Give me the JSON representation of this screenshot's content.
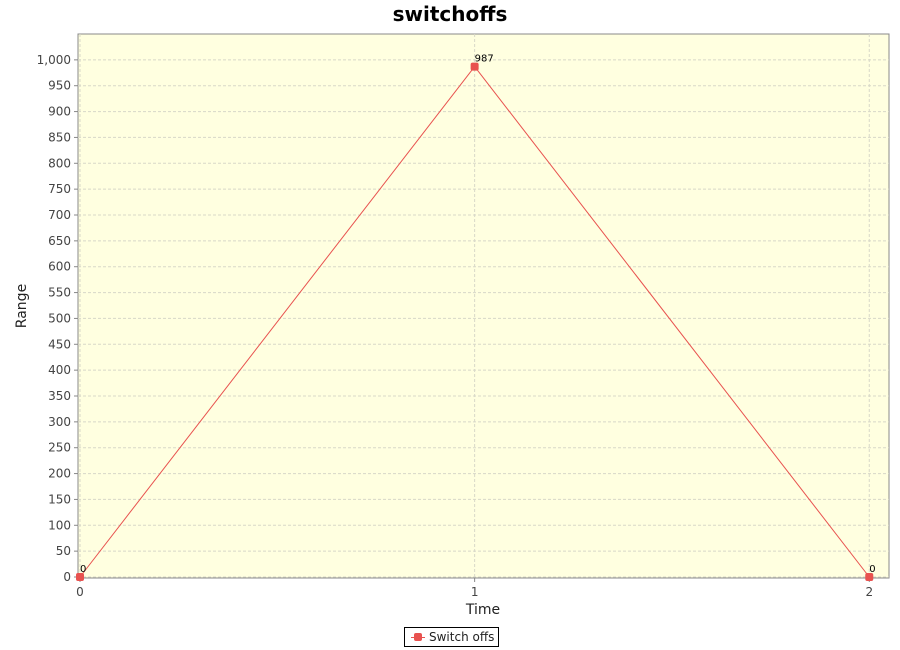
{
  "chart_data": {
    "type": "line",
    "title": "switchoffs",
    "xlabel": "Time",
    "ylabel": "Range",
    "x": [
      0,
      1,
      2
    ],
    "x_ticks": [
      "0",
      "1",
      "2"
    ],
    "xlim": [
      0,
      2.05
    ],
    "ylim": [
      0,
      1050
    ],
    "y_ticks": [
      "0",
      "50",
      "100",
      "150",
      "200",
      "250",
      "300",
      "350",
      "400",
      "450",
      "500",
      "550",
      "600",
      "650",
      "700",
      "750",
      "800",
      "850",
      "900",
      "950",
      "1,000"
    ],
    "series": [
      {
        "name": "Switch offs",
        "values": [
          0,
          987,
          0
        ],
        "data_labels": [
          "0",
          "987",
          "0"
        ],
        "color": "#e8524f"
      }
    ],
    "grid": true,
    "legend": "bottom-center",
    "plot_background": "#ffffe0"
  }
}
